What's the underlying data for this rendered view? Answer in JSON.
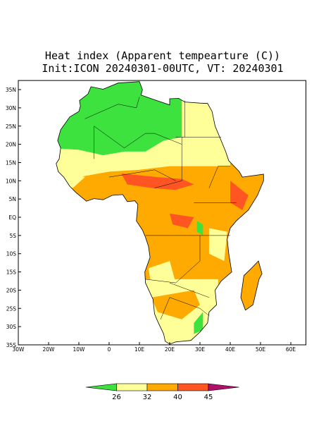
{
  "header": {
    "title": "Heat index (Apparent tempearture (C))",
    "subtitle": "Init:ICON 20240301-00UTC, VT: 20240301"
  },
  "map": {
    "lat_ticks": [
      {
        "value": 35,
        "label": "35N"
      },
      {
        "value": 30,
        "label": "30N"
      },
      {
        "value": 25,
        "label": "25N"
      },
      {
        "value": 20,
        "label": "20N"
      },
      {
        "value": 15,
        "label": "15N"
      },
      {
        "value": 10,
        "label": "10N"
      },
      {
        "value": 5,
        "label": "5N"
      },
      {
        "value": 0,
        "label": "EQ"
      },
      {
        "value": -5,
        "label": "5S"
      },
      {
        "value": -10,
        "label": "10S"
      },
      {
        "value": -15,
        "label": "15S"
      },
      {
        "value": -20,
        "label": "20S"
      },
      {
        "value": -25,
        "label": "25S"
      },
      {
        "value": -30,
        "label": "30S"
      },
      {
        "value": -35,
        "label": "35S"
      }
    ],
    "lon_ticks": [
      {
        "value": -30,
        "label": "30W"
      },
      {
        "value": -20,
        "label": "20W"
      },
      {
        "value": -10,
        "label": "10W"
      },
      0,
      {
        "value": 10,
        "label": "10E"
      },
      {
        "value": 20,
        "label": "20E"
      },
      {
        "value": 30,
        "label": "30E"
      },
      {
        "value": 40,
        "label": "40E"
      },
      {
        "value": 50,
        "label": "50E"
      },
      {
        "value": 60,
        "label": "60E"
      }
    ]
  },
  "colorbar": {
    "levels": [
      26,
      32,
      40,
      45
    ],
    "colors": [
      "#3ee23e",
      "#ffff99",
      "#ffaa00",
      "#ff5522",
      "#b0106a"
    ]
  }
}
